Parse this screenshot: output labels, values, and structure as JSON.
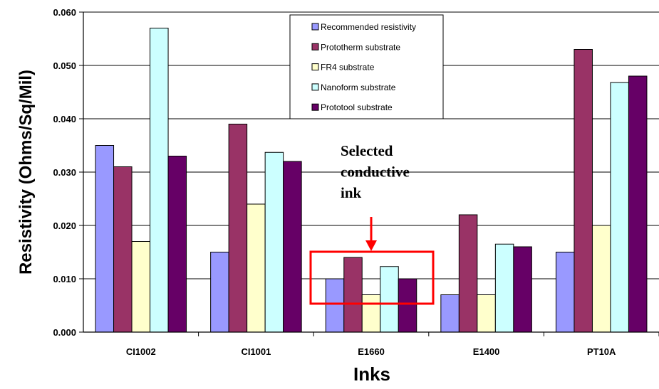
{
  "chart_data": {
    "type": "bar",
    "title": "",
    "xlabel": "Inks",
    "ylabel": "Resistivity (Ohms/Sq/Mil)",
    "ylim": [
      0,
      0.06
    ],
    "yticks": [
      "0.000",
      "0.010",
      "0.020",
      "0.030",
      "0.040",
      "0.050",
      "0.060"
    ],
    "categories": [
      "CI1002",
      "CI1001",
      "E1660",
      "E1400",
      "PT10A"
    ],
    "grid": "horizontal major gridlines",
    "legend_position": "top-center, inside plot",
    "series": [
      {
        "name": "Recommended  resistivity",
        "color": "#9999ff",
        "values": [
          0.035,
          0.015,
          0.01,
          0.007,
          0.015
        ]
      },
      {
        "name": "Prototherm substrate",
        "color": "#993366",
        "values": [
          0.031,
          0.039,
          0.014,
          0.022,
          0.053
        ]
      },
      {
        "name": "FR4 substrate",
        "color": "#ffffcc",
        "values": [
          0.017,
          0.024,
          0.007,
          0.007,
          0.02
        ]
      },
      {
        "name": "Nanoform substrate",
        "color": "#ccffff",
        "values": [
          0.057,
          0.0337,
          0.0123,
          0.0165,
          0.0468
        ]
      },
      {
        "name": "Prototool substrate",
        "color": "#660066",
        "values": [
          0.033,
          0.032,
          0.01,
          0.016,
          0.048
        ]
      }
    ],
    "annotation": {
      "lines": [
        "Selected",
        "conductive",
        "ink"
      ],
      "target_category": "E1660",
      "color": "#ff0000"
    }
  }
}
